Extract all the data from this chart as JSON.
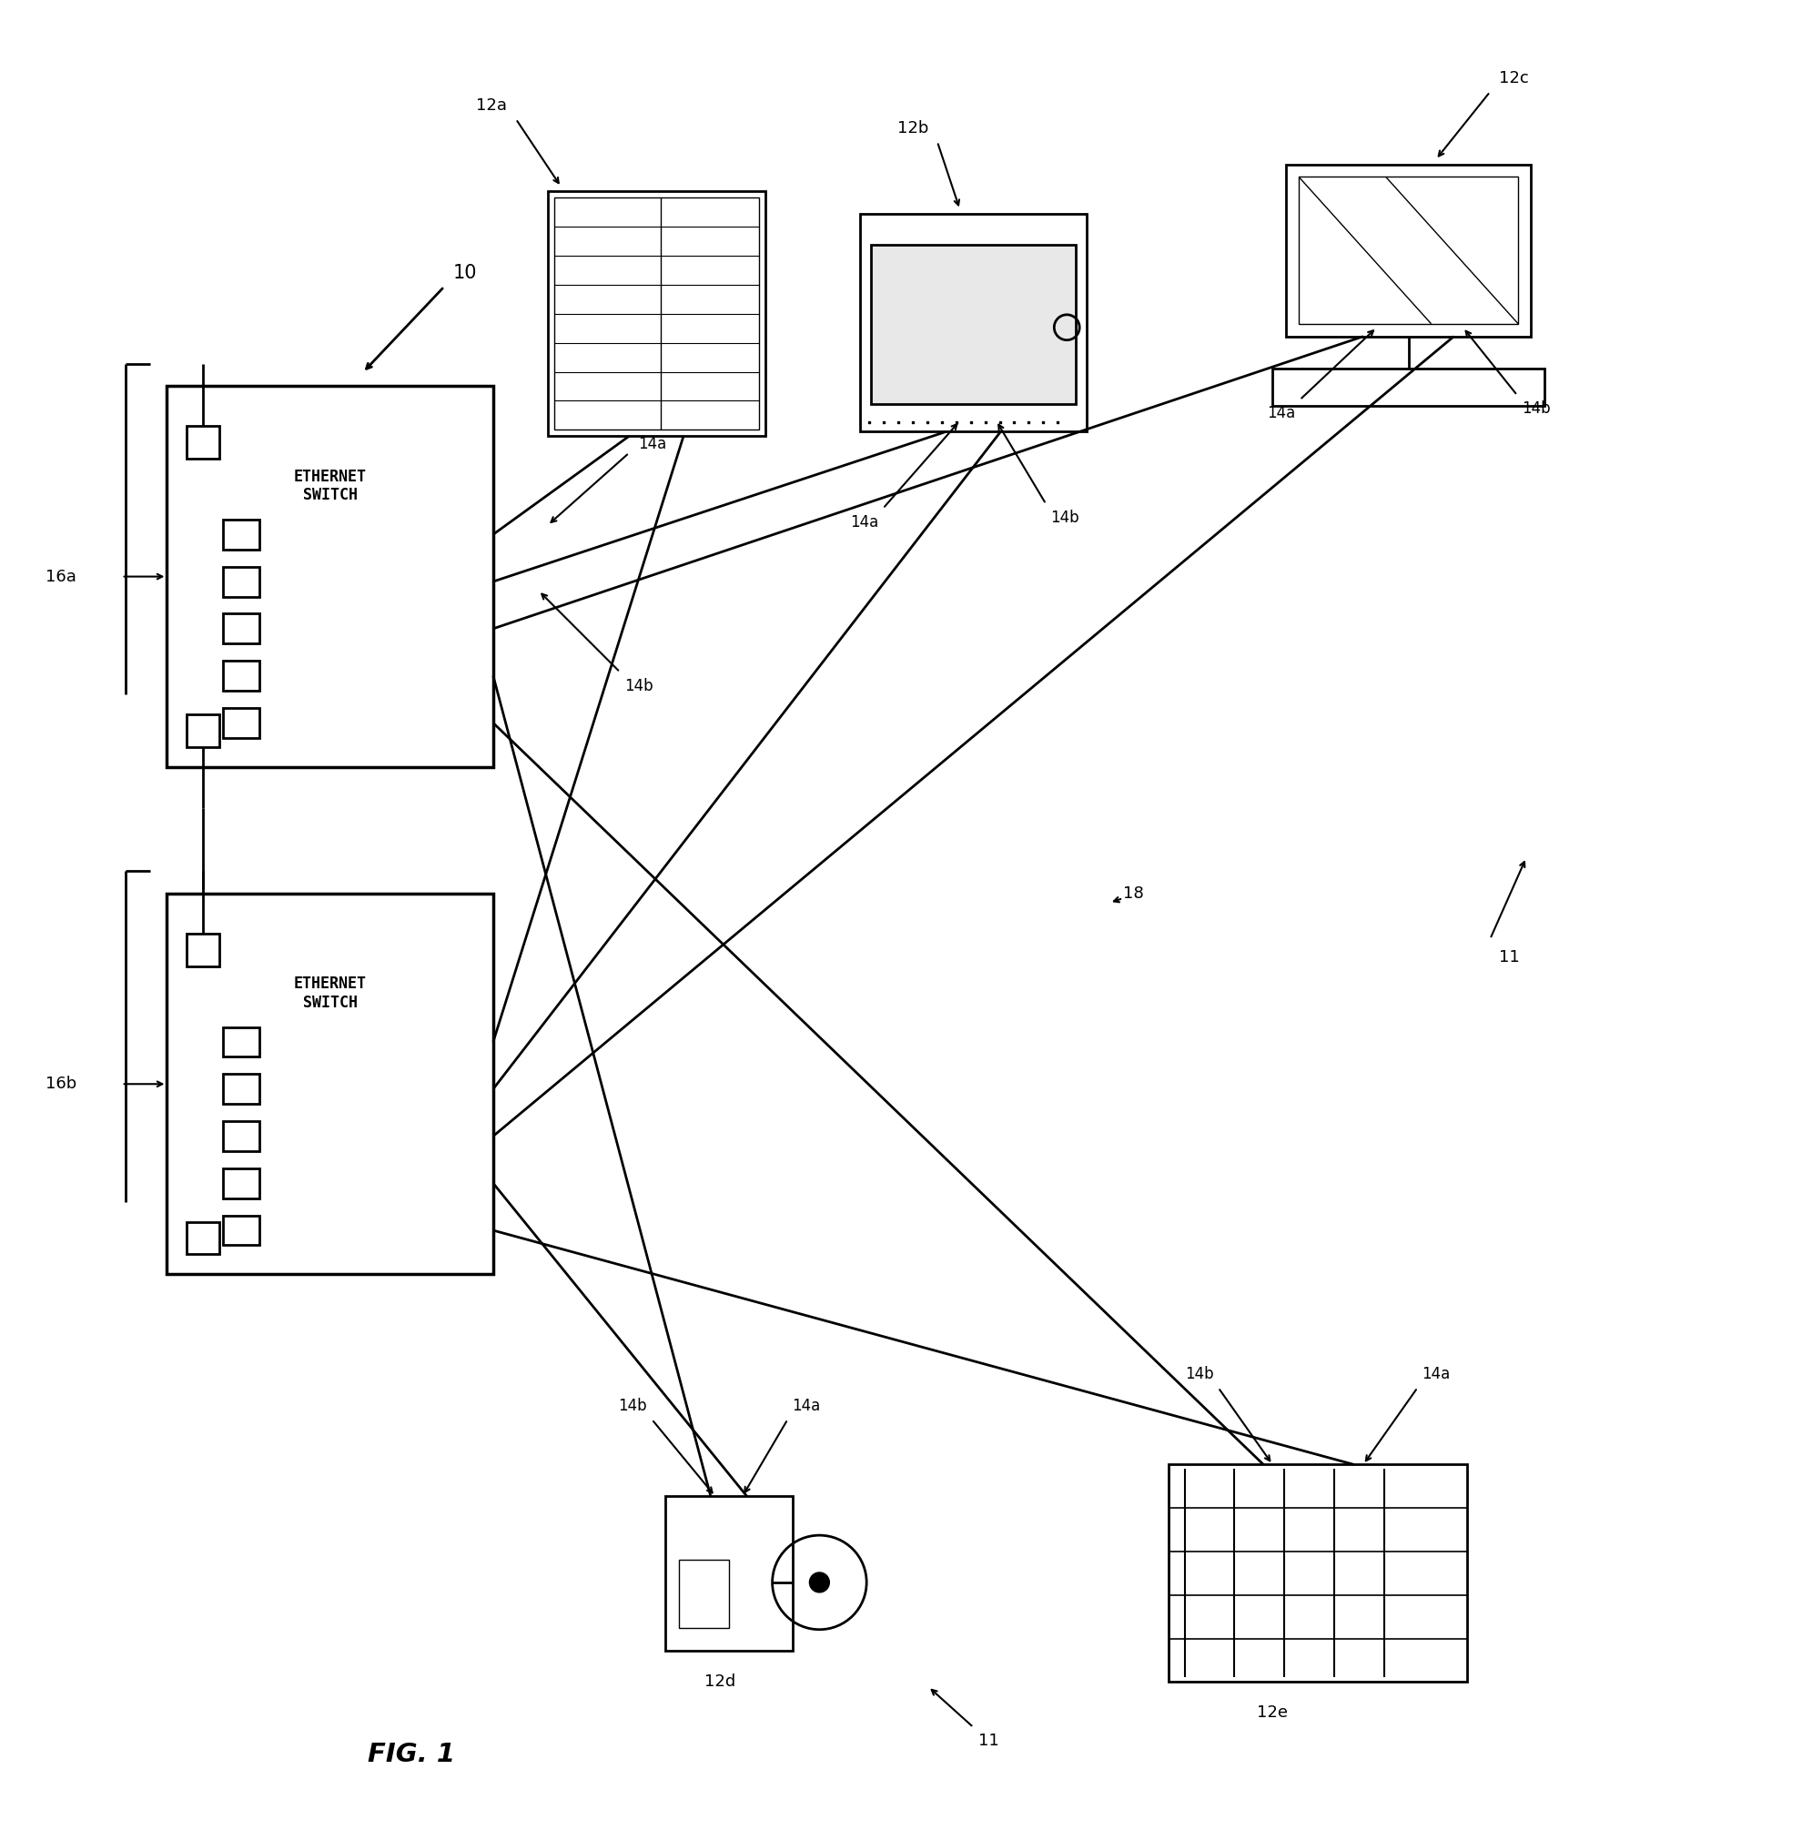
{
  "background_color": "#ffffff",
  "line_color": "#000000",
  "line_width": 2.0,
  "fig_label": "FIG. 1",
  "switch_text": "ETHERNET\nSWITCH",
  "label_10": "10",
  "label_11": "11",
  "label_12a": "12a",
  "label_12b": "12b",
  "label_12c": "12c",
  "label_12d": "12d",
  "label_12e": "12e",
  "label_14a": "14a",
  "label_14b": "14b",
  "label_16a": "16a",
  "label_16b": "16b",
  "label_18": "18"
}
